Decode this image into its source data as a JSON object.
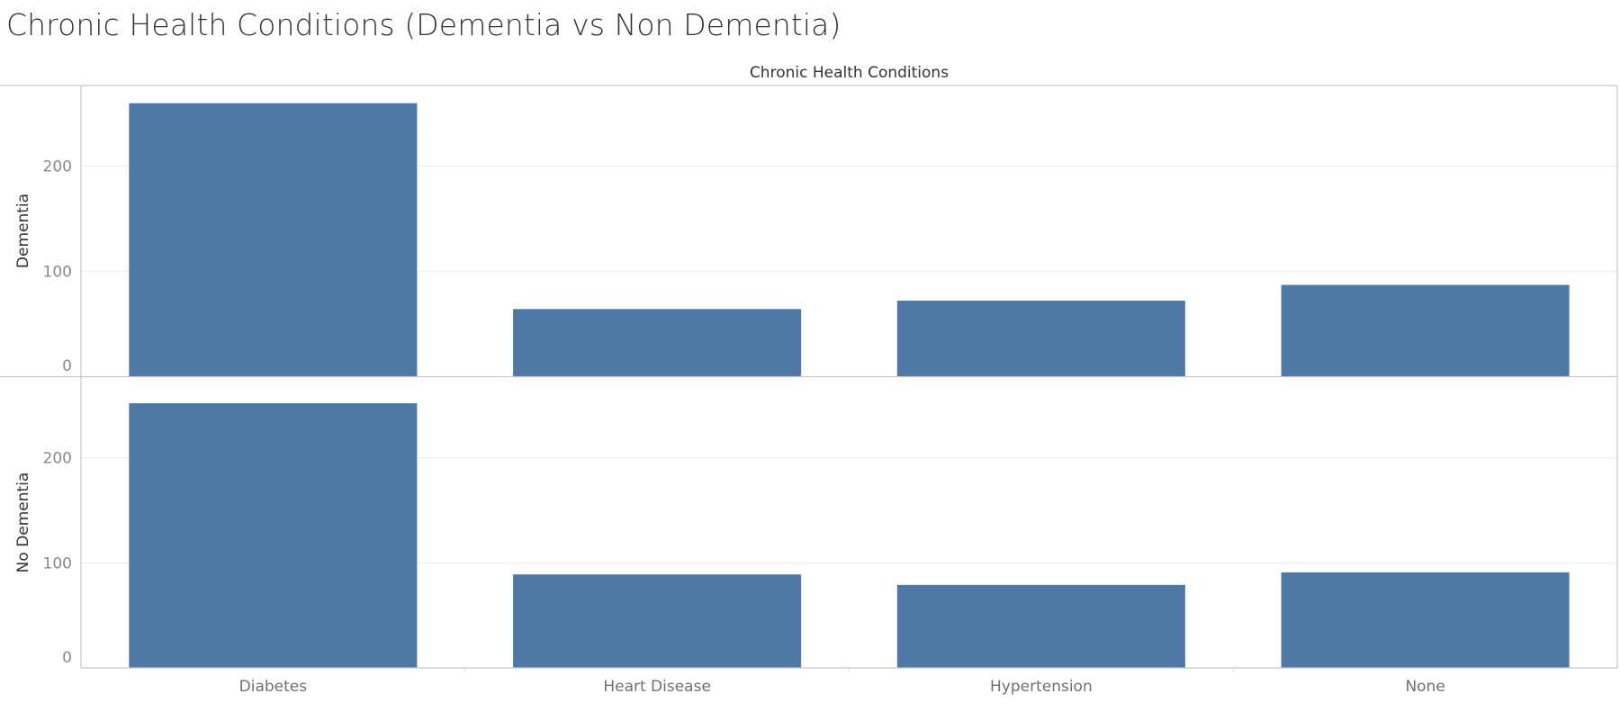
{
  "page": {
    "title": "Chronic Health Conditions (Dementia vs Non Dementia)"
  },
  "colors": {
    "bar": "#4e79a7",
    "gridline": "#ececec",
    "border": "#c8c8c8",
    "background": "#ffffff"
  },
  "chart_data": {
    "type": "bar",
    "title": "Chronic Health Conditions",
    "categories": [
      "Diabetes",
      "Heart Disease",
      "Hypertension",
      "None"
    ],
    "series": [
      {
        "name": "Dementia",
        "values": [
          260,
          64,
          72,
          87
        ]
      },
      {
        "name": "No Dementia",
        "values": [
          252,
          89,
          79,
          91
        ]
      }
    ],
    "xlabel": "Chronic Health Conditions",
    "ylabel": "",
    "ylim": [
      0,
      270
    ],
    "yticks": [
      0,
      100,
      200
    ],
    "grid": true,
    "legend": "none"
  }
}
